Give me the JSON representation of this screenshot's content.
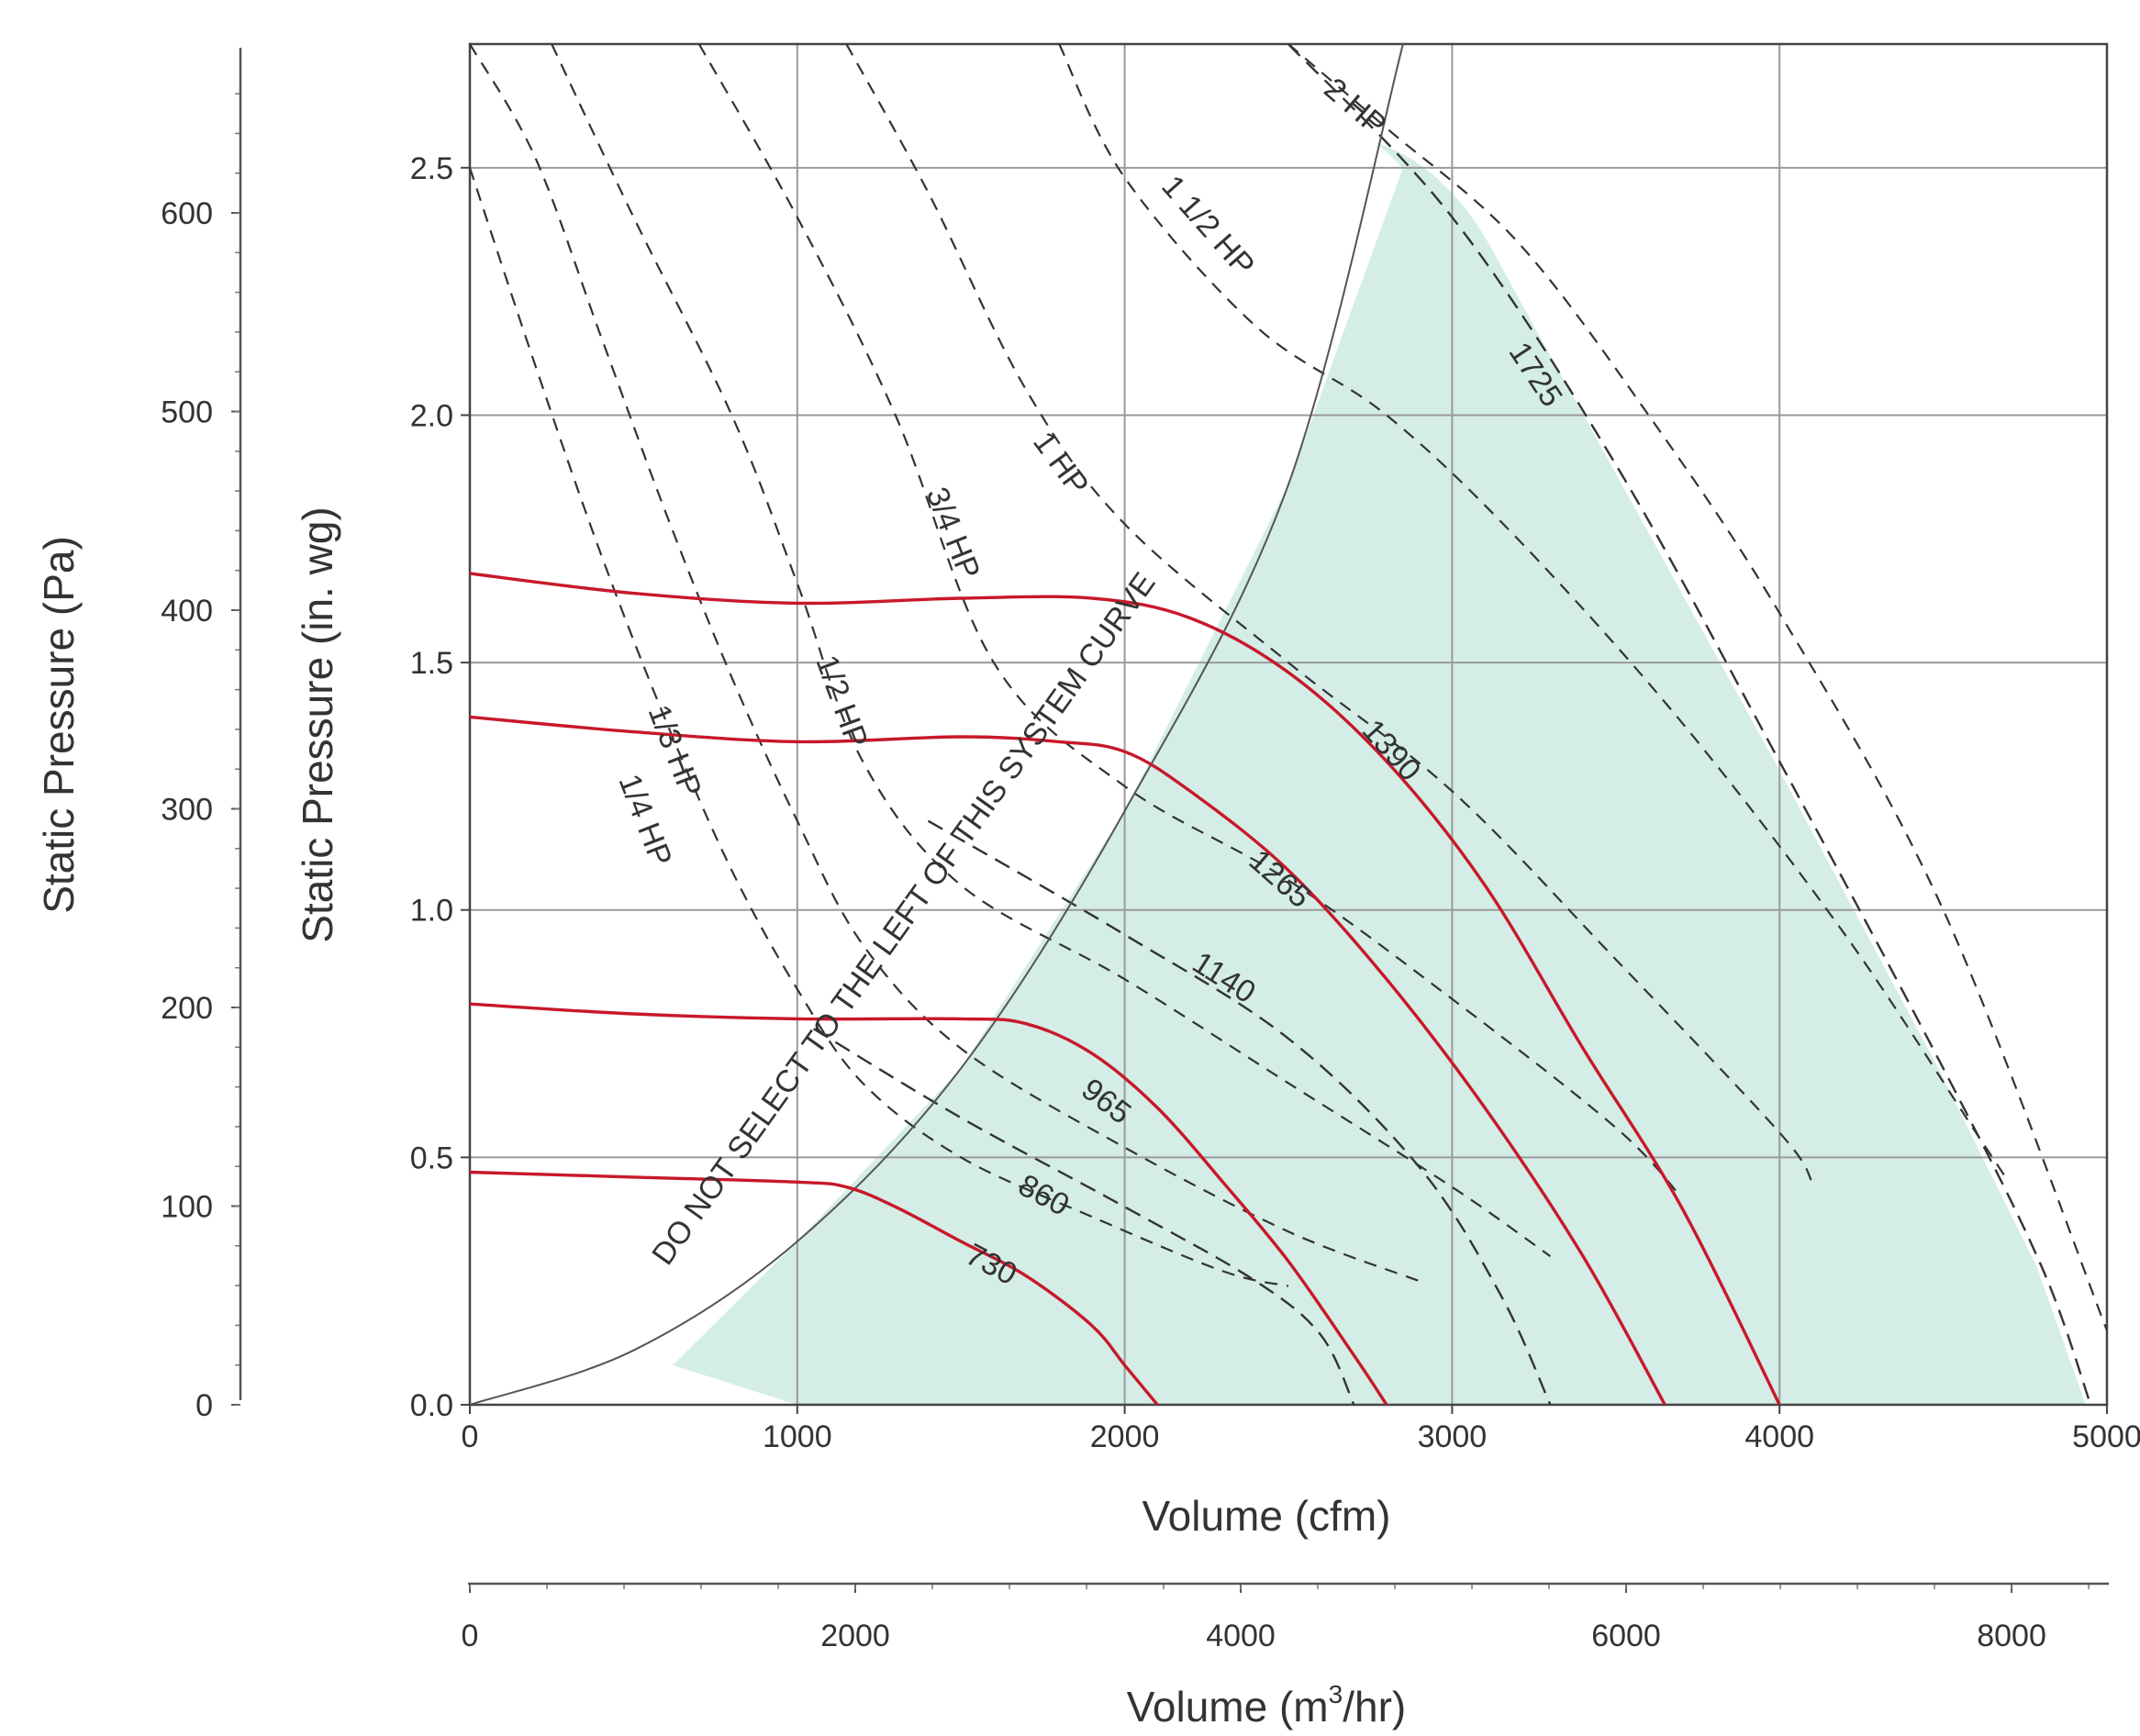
{
  "chart_data": {
    "type": "line",
    "x_axis": {
      "label": "Volume (cfm)",
      "range": [
        0,
        5000
      ],
      "ticks": [
        "0",
        "1000",
        "2000",
        "3000",
        "4000",
        "5000"
      ],
      "grid": true
    },
    "y_axis": {
      "label": "Static Pressure (in. wg)",
      "range": [
        0,
        2.75
      ],
      "ticks": [
        "0.0",
        "0.5",
        "1.0",
        "1.5",
        "2.0",
        "2.5"
      ],
      "grid": true
    },
    "secondary_y_axis": {
      "label": "Static Pressure (Pa)",
      "ticks": [
        "0",
        "100",
        "200",
        "300",
        "400",
        "500",
        "600"
      ]
    },
    "secondary_x_axis": {
      "label_main": "Volume (m",
      "label_sup": "3",
      "label_tail": "/hr)",
      "ticks": [
        "0",
        "2000",
        "4000",
        "6000",
        "8000"
      ]
    },
    "system_curve": {
      "label": "DO NOT SELECT TO THE LEFT OF THIS SYSTEM CURVE",
      "points": [
        [
          0,
          0
        ],
        [
          500,
          0.11
        ],
        [
          1000,
          0.33
        ],
        [
          1500,
          0.68
        ],
        [
          2000,
          1.2
        ],
        [
          2500,
          1.86
        ],
        [
          2850,
          2.75
        ]
      ],
      "shade_color": "#d4ede7"
    },
    "rpm_curves": {
      "color": "#c8182a",
      "series": [
        {
          "name": "730",
          "points": [
            [
              0,
              0.47
            ],
            [
              500,
              0.46
            ],
            [
              1000,
              0.45
            ],
            [
              1150,
              0.44
            ],
            [
              1300,
              0.4
            ],
            [
              1500,
              0.33
            ],
            [
              1700,
              0.26
            ],
            [
              1900,
              0.16
            ],
            [
              2000,
              0.08
            ],
            [
              2100,
              0.0
            ]
          ]
        },
        {
          "name": "965",
          "points": [
            [
              0,
              0.81
            ],
            [
              500,
              0.79
            ],
            [
              1000,
              0.78
            ],
            [
              1500,
              0.78
            ],
            [
              1700,
              0.77
            ],
            [
              1900,
              0.71
            ],
            [
              2100,
              0.6
            ],
            [
              2300,
              0.45
            ],
            [
              2500,
              0.29
            ],
            [
              2700,
              0.1
            ],
            [
              2800,
              0.0
            ]
          ]
        },
        {
          "name": "1265",
          "points": [
            [
              0,
              1.39
            ],
            [
              500,
              1.36
            ],
            [
              1000,
              1.34
            ],
            [
              1500,
              1.35
            ],
            [
              1800,
              1.34
            ],
            [
              2000,
              1.32
            ],
            [
              2200,
              1.24
            ],
            [
              2500,
              1.08
            ],
            [
              2800,
              0.86
            ],
            [
              3100,
              0.6
            ],
            [
              3400,
              0.3
            ],
            [
              3650,
              0.0
            ]
          ]
        },
        {
          "name": "1390",
          "points": [
            [
              0,
              1.68
            ],
            [
              500,
              1.64
            ],
            [
              1000,
              1.62
            ],
            [
              1500,
              1.63
            ],
            [
              1900,
              1.63
            ],
            [
              2200,
              1.59
            ],
            [
              2500,
              1.48
            ],
            [
              2800,
              1.3
            ],
            [
              3100,
              1.05
            ],
            [
              3400,
              0.72
            ],
            [
              3700,
              0.4
            ],
            [
              4000,
              0.0
            ]
          ]
        }
      ]
    },
    "rpm_dashed": {
      "series": [
        {
          "name": "860",
          "label_at": [
            1750,
            0.42
          ],
          "points": [
            [
              1050,
              0.76
            ],
            [
              1500,
              0.58
            ],
            [
              2000,
              0.4
            ],
            [
              2400,
              0.25
            ],
            [
              2600,
              0.14
            ],
            [
              2700,
              0.0
            ]
          ]
        },
        {
          "name": "1140",
          "label_at": [
            2300,
            0.86
          ],
          "points": [
            [
              1400,
              1.18
            ],
            [
              2000,
              0.95
            ],
            [
              2500,
              0.74
            ],
            [
              2900,
              0.48
            ],
            [
              3150,
              0.22
            ],
            [
              3300,
              0.0
            ]
          ]
        },
        {
          "name": "1725",
          "label_at": [
            3250,
            2.08
          ],
          "points": [
            [
              2500,
              2.75
            ],
            [
              3000,
              2.4
            ],
            [
              3500,
              1.9
            ],
            [
              4000,
              1.3
            ],
            [
              4500,
              0.68
            ],
            [
              4800,
              0.28
            ],
            [
              4950,
              0.0
            ]
          ]
        }
      ]
    },
    "hp_curves": {
      "series": [
        {
          "name": "1/4 HP",
          "label_at": [
            530,
            1.18
          ],
          "points": [
            [
              0,
              2.5
            ],
            [
              200,
              2.1
            ],
            [
              400,
              1.72
            ],
            [
              600,
              1.38
            ],
            [
              800,
              1.08
            ],
            [
              1000,
              0.84
            ],
            [
              1200,
              0.65
            ],
            [
              1500,
              0.5
            ],
            [
              1900,
              0.38
            ],
            [
              2300,
              0.27
            ],
            [
              2500,
              0.24
            ]
          ]
        },
        {
          "name": "1/3 HP",
          "label_at": [
            620,
            1.32
          ],
          "points": [
            [
              0,
              2.75
            ],
            [
              200,
              2.52
            ],
            [
              400,
              2.16
            ],
            [
              600,
              1.8
            ],
            [
              800,
              1.47
            ],
            [
              1000,
              1.18
            ],
            [
              1200,
              0.93
            ],
            [
              1500,
              0.72
            ],
            [
              2000,
              0.52
            ],
            [
              2500,
              0.35
            ],
            [
              2900,
              0.25
            ]
          ]
        },
        {
          "name": "1/2 HP",
          "label_at": [
            1130,
            1.42
          ],
          "points": [
            [
              250,
              2.75
            ],
            [
              500,
              2.4
            ],
            [
              800,
              2.0
            ],
            [
              1000,
              1.66
            ],
            [
              1200,
              1.3
            ],
            [
              1500,
              1.05
            ],
            [
              2000,
              0.86
            ],
            [
              2500,
              0.65
            ],
            [
              3000,
              0.44
            ],
            [
              3300,
              0.3
            ]
          ]
        },
        {
          "name": "3/4 HP",
          "label_at": [
            1470,
            1.76
          ],
          "points": [
            [
              700,
              2.75
            ],
            [
              1000,
              2.4
            ],
            [
              1300,
              2.0
            ],
            [
              1600,
              1.5
            ],
            [
              2000,
              1.25
            ],
            [
              2500,
              1.06
            ],
            [
              3000,
              0.82
            ],
            [
              3500,
              0.56
            ],
            [
              3700,
              0.42
            ]
          ]
        },
        {
          "name": "1 HP",
          "label_at": [
            1800,
            1.9
          ],
          "points": [
            [
              1150,
              2.75
            ],
            [
              1400,
              2.45
            ],
            [
              1700,
              2.05
            ],
            [
              2000,
              1.78
            ],
            [
              2500,
              1.5
            ],
            [
              3000,
              1.24
            ],
            [
              3500,
              0.9
            ],
            [
              4000,
              0.55
            ],
            [
              4100,
              0.45
            ]
          ]
        },
        {
          "name": "1 1/2 HP",
          "label_at": [
            2250,
            2.38
          ],
          "points": [
            [
              1800,
              2.75
            ],
            [
              2000,
              2.48
            ],
            [
              2400,
              2.18
            ],
            [
              2800,
              2.0
            ],
            [
              3200,
              1.75
            ],
            [
              3700,
              1.38
            ],
            [
              4200,
              0.95
            ],
            [
              4600,
              0.55
            ],
            [
              4700,
              0.45
            ]
          ]
        },
        {
          "name": "2 HP",
          "label_at": [
            2700,
            2.62
          ],
          "points": [
            [
              2500,
              2.75
            ],
            [
              2800,
              2.58
            ],
            [
              3200,
              2.35
            ],
            [
              3600,
              2.0
            ],
            [
              4000,
              1.6
            ],
            [
              4500,
              1.0
            ],
            [
              5000,
              0.15
            ]
          ]
        }
      ]
    }
  }
}
